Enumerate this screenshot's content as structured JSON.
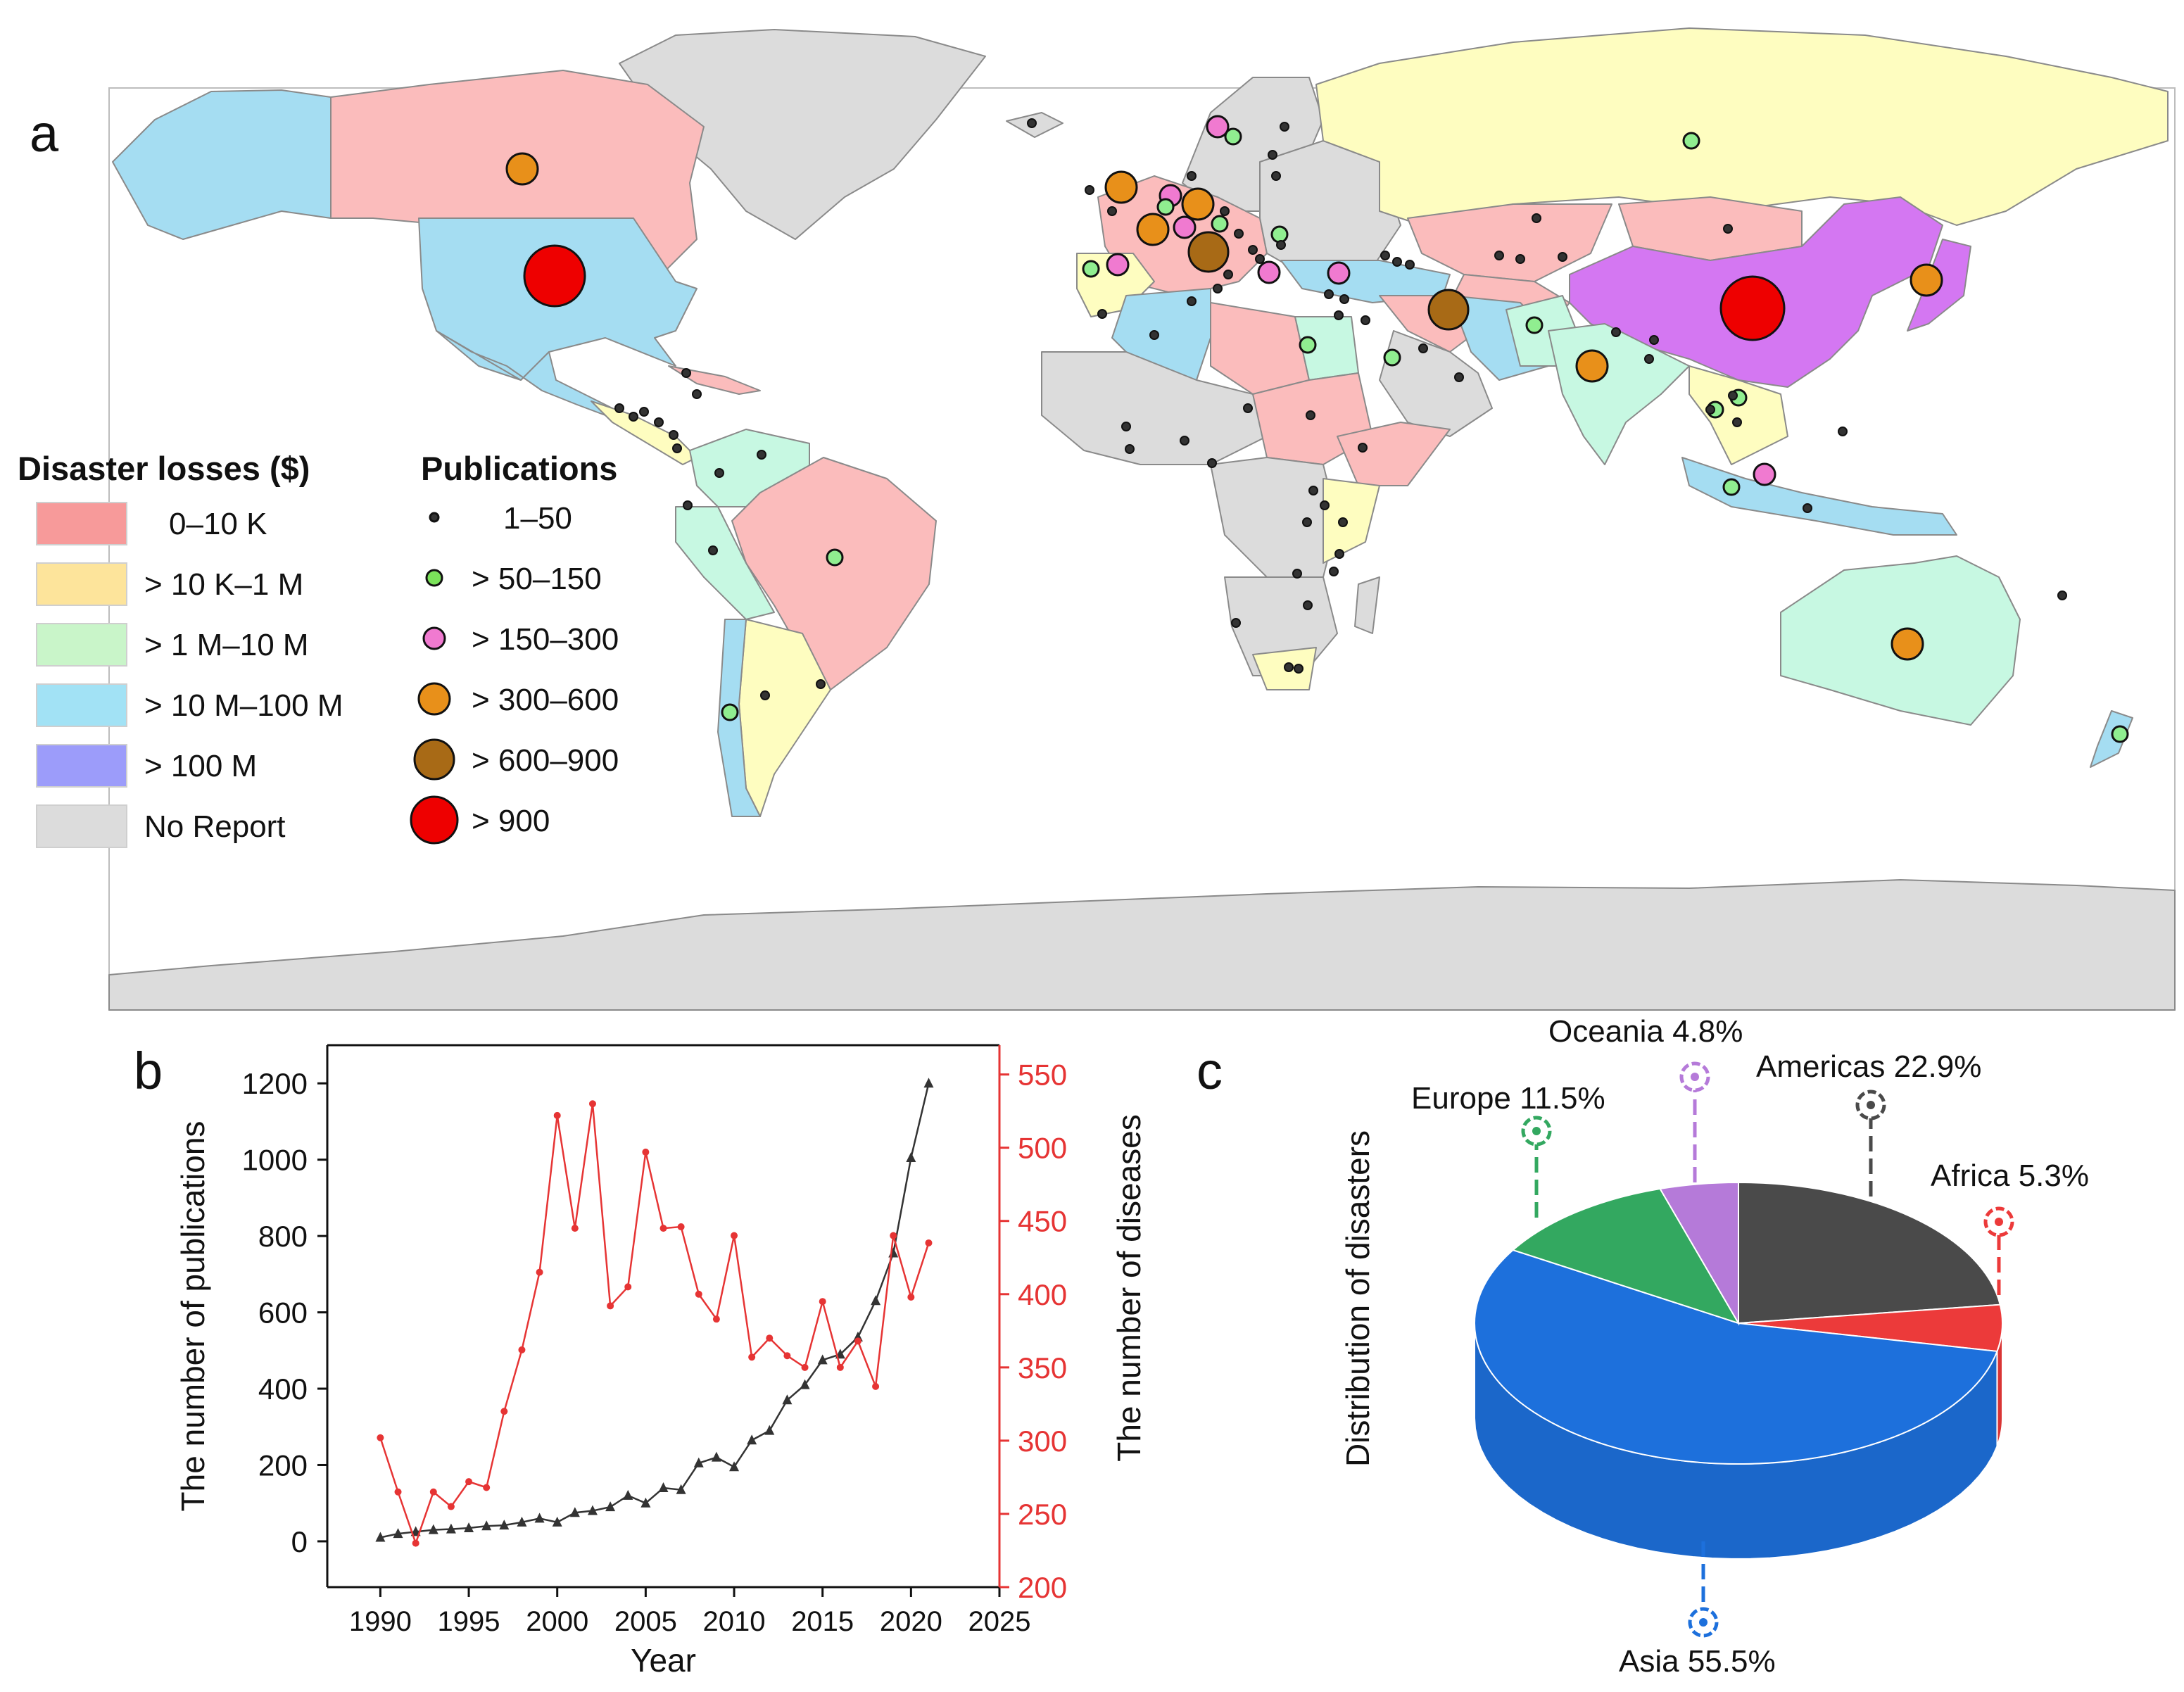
{
  "panel_labels": {
    "a": "a",
    "b": "b",
    "c": "c"
  },
  "map": {
    "legend": {
      "losses_title": "Disaster losses ($)",
      "losses": [
        {
          "label": "0–10 K",
          "color": "#f79a9a"
        },
        {
          "label": "> 10 K–1 M",
          "color": "#fde49b"
        },
        {
          "label": "> 1 M–10 M",
          "color": "#c9f5c9"
        },
        {
          "label": "> 10 M–100 M",
          "color": "#a2e2f5"
        },
        {
          "label": "> 100 M",
          "color": "#9c9cfa"
        },
        {
          "label": "No Report",
          "color": "#dcdcdc"
        }
      ],
      "pubs_title": "Publications",
      "pubs": [
        {
          "label": "1–50",
          "color": "#333333",
          "size": 1
        },
        {
          "label": "> 50–150",
          "color": "#7be35a",
          "size": 2
        },
        {
          "label": "> 150–300",
          "color": "#f07ad0",
          "size": 3
        },
        {
          "label": "> 300–600",
          "color": "#e8901a",
          "size": 4
        },
        {
          "label": "> 600–900",
          "color": "#a86a16",
          "size": 5
        },
        {
          "label": "> 900",
          "color": "#ee0000",
          "size": 6
        }
      ]
    },
    "region_colors": {
      "no_report": "#dcdcdc",
      "pink": "#fbbcbc",
      "yellow": "#fefdc0",
      "mint": "#c7f8e2",
      "blue": "#a5ddf2",
      "violet": "#d477f2",
      "border": "#8a8a8a"
    }
  },
  "chart_data": [
    {
      "type": "line",
      "xlabel": "Year",
      "ylabel": "The number of publications",
      "y2label": "The number of diseases",
      "xlim": [
        1987,
        2025
      ],
      "ylim": [
        -120,
        1300
      ],
      "y2lim": [
        200,
        570
      ],
      "xticks": [
        1990,
        1995,
        2000,
        2005,
        2010,
        2015,
        2020,
        2025
      ],
      "yticks": [
        0,
        200,
        400,
        600,
        800,
        1000,
        1200
      ],
      "y2ticks": [
        200,
        250,
        300,
        350,
        400,
        450,
        500,
        550
      ],
      "series": [
        {
          "axis": "left",
          "color": "#333333",
          "marker": "triangle",
          "x": [
            1990,
            1991,
            1992,
            1993,
            1994,
            1995,
            1996,
            1997,
            1998,
            1999,
            2000,
            2001,
            2002,
            2003,
            2004,
            2005,
            2006,
            2007,
            2008,
            2009,
            2010,
            2011,
            2012,
            2013,
            2014,
            2015,
            2016,
            2017,
            2018,
            2019,
            2020,
            2021
          ],
          "y": [
            10,
            20,
            25,
            30,
            32,
            35,
            40,
            42,
            50,
            60,
            50,
            75,
            80,
            90,
            120,
            100,
            140,
            135,
            205,
            220,
            195,
            265,
            290,
            370,
            410,
            475,
            490,
            535,
            630,
            755,
            1005,
            1200
          ]
        },
        {
          "axis": "right",
          "color": "#e63434",
          "marker": "circle",
          "x": [
            1990,
            1991,
            1992,
            1993,
            1994,
            1995,
            1996,
            1997,
            1998,
            1999,
            2000,
            2001,
            2002,
            2003,
            2004,
            2005,
            2006,
            2007,
            2008,
            2009,
            2010,
            2011,
            2012,
            2013,
            2014,
            2015,
            2016,
            2017,
            2018,
            2019,
            2020,
            2021
          ],
          "y": [
            302,
            265,
            230,
            265,
            255,
            272,
            268,
            320,
            362,
            415,
            522,
            445,
            530,
            392,
            405,
            497,
            445,
            446,
            400,
            383,
            440,
            357,
            370,
            358,
            350,
            395,
            350,
            368,
            337,
            440,
            398,
            435
          ]
        }
      ]
    },
    {
      "type": "pie",
      "ylabel": "Distribution of disasters",
      "slices": [
        {
          "name": "Americas",
          "value": 22.9,
          "label": "Americas 22.9%",
          "color": "#4a4a4a"
        },
        {
          "name": "Africa",
          "value": 5.3,
          "label": "Africa 5.3%",
          "color": "#ec3a3a"
        },
        {
          "name": "Asia",
          "value": 55.5,
          "label": "Asia 55.5%",
          "color": "#1d70dc"
        },
        {
          "name": "Europe",
          "value": 11.5,
          "label": "Europe 11.5%",
          "color": "#33a860"
        },
        {
          "name": "Oceania",
          "value": 4.8,
          "label": "Oceania 4.8%",
          "color": "#b57ad9"
        }
      ]
    }
  ]
}
